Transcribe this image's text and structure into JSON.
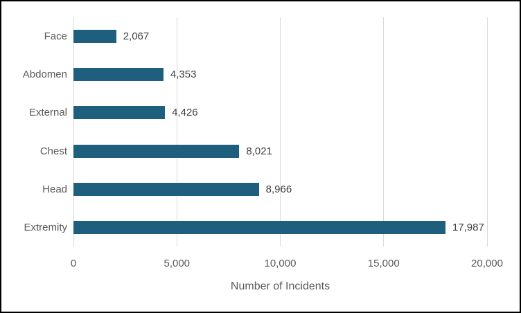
{
  "chart_data": {
    "type": "bar",
    "orientation": "horizontal",
    "title": "",
    "xlabel": "Number of Incidents",
    "ylabel": "",
    "categories": [
      "Face",
      "Abdomen",
      "External",
      "Chest",
      "Head",
      "Extremity"
    ],
    "values": [
      2067,
      4353,
      4426,
      8021,
      8966,
      17987
    ],
    "value_labels": [
      "2,067",
      "4,353",
      "4,426",
      "8,021",
      "8,966",
      "17,987"
    ],
    "xlim": [
      0,
      20000
    ],
    "x_ticks": [
      0,
      5000,
      10000,
      15000,
      20000
    ],
    "x_tick_labels": [
      "0",
      "5,000",
      "10,000",
      "15,000",
      "20,000"
    ],
    "grid": "vertical",
    "legend": "none",
    "bar_color": "#1e5f7e",
    "gridline_color": "#d9d9d9",
    "axis_text_color": "#595959",
    "data_label_color": "#404040",
    "frame_border_color": "#000000"
  }
}
